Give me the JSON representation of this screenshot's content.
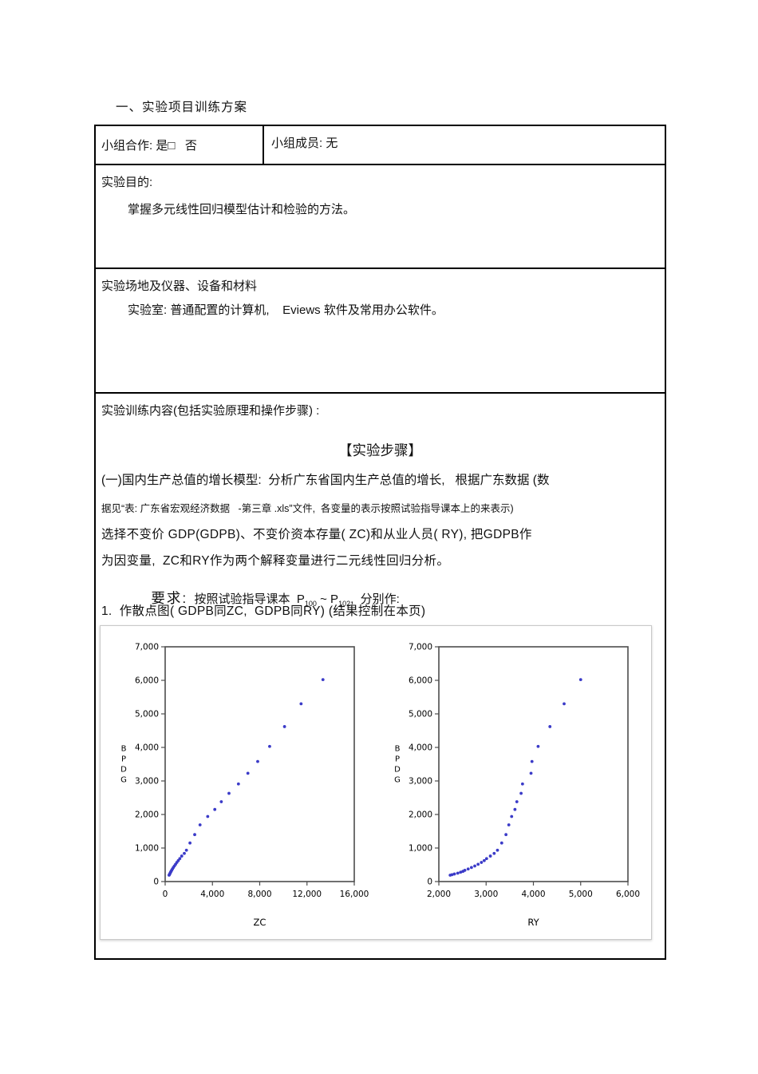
{
  "page": {
    "title": "一、实验项目训练方案"
  },
  "table": {
    "row1": {
      "cooperation_label": "小组合作: 是□   否",
      "members_label": "小组成员: 无"
    },
    "row2": {
      "heading": "实验目的:",
      "body": "掌握多元线性回归模型估计和检验的方法。"
    },
    "row3": {
      "heading": "实验场地及仪器、设备和材料",
      "body": "实验室: 普通配置的计算机,    Eviews 软件及常用办公软件。"
    },
    "row4": {
      "heading": "实验训练内容(包括实验原理和操作步骤) :",
      "steps_title": "【实验步骤】",
      "para1": "(一)国内生产总值的增长模型:  分析广东省国内生产总值的增长,   根据广东数据 (数",
      "para2": "据见“表: 广东省宏观经济数据   -第三章 .xls”文件,  各变量的表示按照试验指导课本上的来表示)",
      "para3": "选择不变价 GDP(GDPB)、不变价资本存量( ZC)和从业人员( RY), 把GDPB作",
      "para4": "为因变量,  ZC和RY作为两个解释变量进行二元线性回归分析。",
      "requirement": {
        "label": "要求:",
        "text_before": "  按照试验指导课本  ",
        "p1": "P",
        "p1_sub": "100",
        "tilde": " ~ ",
        "p2": "P",
        "p2_sub": "102",
        "text_after": ",  分别作:"
      },
      "item1": "1.  作散点图( GDPB同ZC,  GDPB同RY) (结果控制在本页)"
    }
  },
  "chart_data": [
    {
      "type": "scatter",
      "title": "",
      "xlabel": "ZC",
      "ylabel": "GDPB",
      "ylabel_stacked": [
        "B",
        "P",
        "D",
        "G"
      ],
      "xlim": [
        0,
        16000
      ],
      "x_ticks": [
        0,
        4000,
        8000,
        12000,
        16000
      ],
      "ylim": [
        0,
        7000
      ],
      "y_ticks": [
        0,
        1000,
        2000,
        3000,
        4000,
        5000,
        6000,
        7000
      ],
      "grid": false,
      "legend": false,
      "point_color": "#3b3bc8",
      "points": [
        [
          330,
          190
        ],
        [
          355,
          205
        ],
        [
          385,
          225
        ],
        [
          420,
          250
        ],
        [
          460,
          280
        ],
        [
          500,
          305
        ],
        [
          550,
          335
        ],
        [
          615,
          375
        ],
        [
          690,
          420
        ],
        [
          780,
          465
        ],
        [
          880,
          515
        ],
        [
          990,
          570
        ],
        [
          1110,
          625
        ],
        [
          1240,
          685
        ],
        [
          1400,
          760
        ],
        [
          1620,
          840
        ],
        [
          1800,
          935
        ],
        [
          2100,
          1150
        ],
        [
          2500,
          1400
        ],
        [
          2950,
          1690
        ],
        [
          3600,
          1940
        ],
        [
          4200,
          2150
        ],
        [
          4750,
          2380
        ],
        [
          5400,
          2630
        ],
        [
          6200,
          2910
        ],
        [
          7000,
          3230
        ],
        [
          7830,
          3580
        ],
        [
          8840,
          4030
        ],
        [
          10100,
          4620
        ],
        [
          11500,
          5300
        ],
        [
          13350,
          6020
        ]
      ]
    },
    {
      "type": "scatter",
      "title": "",
      "xlabel": "RY",
      "ylabel": "GDPB",
      "ylabel_stacked": [
        "B",
        "P",
        "D",
        "G"
      ],
      "xlim": [
        2000,
        6000
      ],
      "x_ticks": [
        2000,
        3000,
        4000,
        5000,
        6000
      ],
      "ylim": [
        0,
        7000
      ],
      "y_ticks": [
        0,
        1000,
        2000,
        3000,
        4000,
        5000,
        6000,
        7000
      ],
      "grid": false,
      "legend": false,
      "point_color": "#3b3bc8",
      "points": [
        [
          2240,
          190
        ],
        [
          2280,
          205
        ],
        [
          2330,
          225
        ],
        [
          2400,
          250
        ],
        [
          2460,
          280
        ],
        [
          2510,
          305
        ],
        [
          2550,
          335
        ],
        [
          2620,
          375
        ],
        [
          2690,
          420
        ],
        [
          2760,
          465
        ],
        [
          2830,
          515
        ],
        [
          2900,
          570
        ],
        [
          2960,
          625
        ],
        [
          3010,
          685
        ],
        [
          3090,
          760
        ],
        [
          3170,
          840
        ],
        [
          3240,
          935
        ],
        [
          3330,
          1150
        ],
        [
          3420,
          1400
        ],
        [
          3480,
          1690
        ],
        [
          3540,
          1940
        ],
        [
          3610,
          2150
        ],
        [
          3650,
          2380
        ],
        [
          3740,
          2630
        ],
        [
          3770,
          2910
        ],
        [
          3950,
          3230
        ],
        [
          3970,
          3580
        ],
        [
          4100,
          4030
        ],
        [
          4350,
          4620
        ],
        [
          4650,
          5300
        ],
        [
          5000,
          6020
        ]
      ]
    }
  ]
}
